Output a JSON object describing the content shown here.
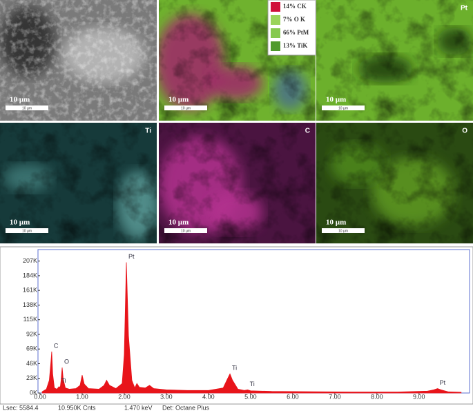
{
  "panels": [
    {
      "scale_label": "10 µm",
      "scale_sub": "10 µm"
    },
    {
      "scale_label": "10 µm",
      "scale_sub": "10 µm",
      "legend": [
        {
          "text": "14% CK",
          "color": "#d0103a"
        },
        {
          "text": "7% O K",
          "color": "#9ad45a"
        },
        {
          "text": "66% PtM",
          "color": "#86c94e"
        },
        {
          "text": "13% TiK",
          "color": "#4f9a2c"
        }
      ]
    },
    {
      "scale_label": "10 µm",
      "scale_sub": "10 µm",
      "element": "Pt"
    },
    {
      "scale_label": "10 µm",
      "scale_sub": "10 µm",
      "element": "Ti"
    },
    {
      "scale_label": "10 µm",
      "scale_sub": "10 µm",
      "element": "C"
    },
    {
      "scale_label": "10 µm",
      "scale_sub": "10 µm",
      "element": "O"
    }
  ],
  "chart_data": {
    "type": "area",
    "color": "#e8141a",
    "x": [
      0.05,
      0.15,
      0.22,
      0.26,
      0.277,
      0.3,
      0.34,
      0.4,
      0.45,
      0.48,
      0.5,
      0.525,
      0.55,
      0.6,
      0.7,
      0.85,
      0.95,
      1.0,
      1.05,
      1.15,
      1.4,
      1.52,
      1.58,
      1.65,
      1.8,
      1.95,
      2.0,
      2.05,
      2.1,
      2.18,
      2.25,
      2.3,
      2.36,
      2.5,
      2.6,
      2.7,
      3.0,
      3.5,
      4.0,
      4.35,
      4.45,
      4.51,
      4.57,
      4.7,
      4.85,
      4.93,
      5.0,
      5.5,
      6.5,
      7.5,
      8.5,
      9.2,
      9.35,
      9.44,
      9.52,
      9.7,
      10.0
    ],
    "values": [
      2000,
      6000,
      20000,
      50000,
      65000,
      30000,
      8000,
      6000,
      10000,
      9000,
      20000,
      40000,
      22000,
      8000,
      6000,
      7000,
      12000,
      28000,
      14000,
      7000,
      6000,
      12000,
      20000,
      12000,
      7000,
      15000,
      60000,
      205000,
      90000,
      20000,
      8000,
      15000,
      9000,
      8000,
      12000,
      7000,
      5000,
      4000,
      4000,
      8000,
      22000,
      30000,
      20000,
      6000,
      4000,
      5000,
      3500,
      2500,
      2000,
      1600,
      1600,
      3000,
      5000,
      7000,
      5000,
      1800,
      1200
    ],
    "annotations": [
      {
        "text": "C",
        "x": 0.277
      },
      {
        "text": "Ti",
        "x": 0.45
      },
      {
        "text": "O",
        "x": 0.525
      },
      {
        "text": "Pt",
        "x": 2.05
      },
      {
        "text": "Ti",
        "x": 4.51
      },
      {
        "text": "Ti",
        "x": 4.93
      },
      {
        "text": "Pt",
        "x": 9.44
      }
    ],
    "xlim": [
      0,
      10.2
    ],
    "ylim": [
      0,
      225000
    ],
    "xticks": [
      {
        "value": 0,
        "label": "0.00"
      },
      {
        "value": 1,
        "label": "1.00"
      },
      {
        "value": 2,
        "label": "2.00"
      },
      {
        "value": 3,
        "label": "3.00"
      },
      {
        "value": 4,
        "label": "4.00"
      },
      {
        "value": 5,
        "label": "5.00"
      },
      {
        "value": 6,
        "label": "6.00"
      },
      {
        "value": 7,
        "label": "7.00"
      },
      {
        "value": 8,
        "label": "8.00"
      },
      {
        "value": 9,
        "label": "9.00"
      }
    ],
    "yticks": [
      {
        "value": 0,
        "label": "0K"
      },
      {
        "value": 23000,
        "label": "23K"
      },
      {
        "value": 46000,
        "label": "46K"
      },
      {
        "value": 69000,
        "label": "69K"
      },
      {
        "value": 92000,
        "label": "92K"
      },
      {
        "value": 115000,
        "label": "115K"
      },
      {
        "value": 138000,
        "label": "138K"
      },
      {
        "value": 161000,
        "label": "161K"
      },
      {
        "value": 184000,
        "label": "184K"
      },
      {
        "value": 207000,
        "label": "207K"
      }
    ]
  },
  "status": [
    "Lsec: 5584.4",
    "10.950K Cnts",
    "1.470 keV",
    "Det: Octane Plus"
  ]
}
